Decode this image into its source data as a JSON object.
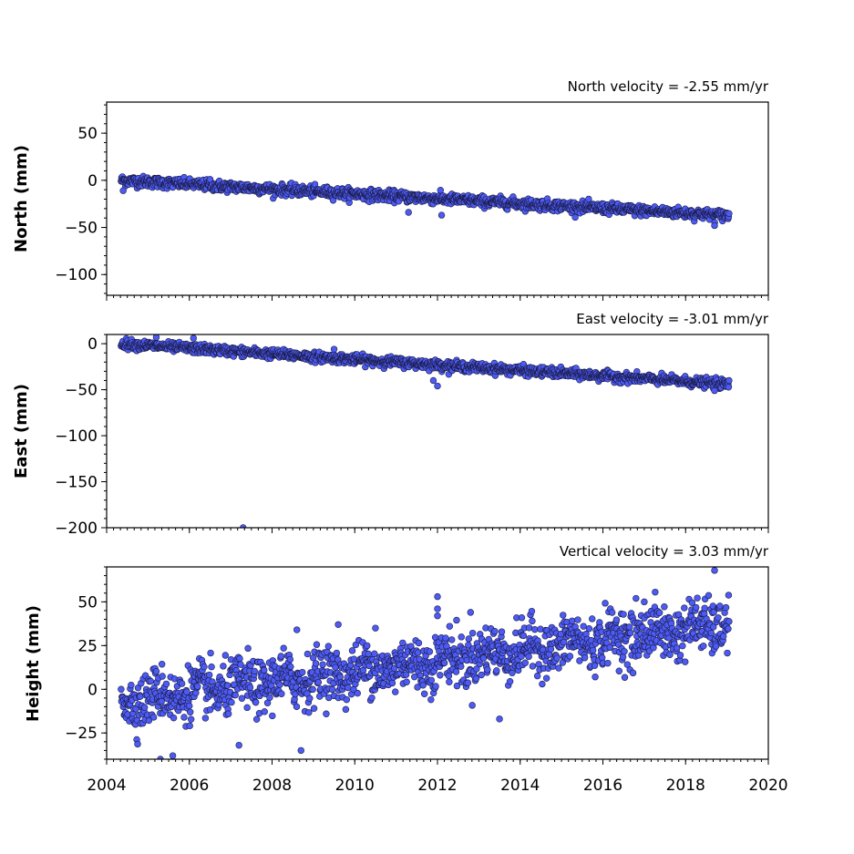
{
  "chart_data": [
    {
      "type": "scatter",
      "id": "north",
      "title": "North velocity = -2.55 mm/yr",
      "xlabel": "",
      "ylabel": "North (mm)",
      "xlim": [
        2004,
        2020
      ],
      "ylim": [
        -122,
        83
      ],
      "yticks": [
        50,
        0,
        -50,
        -100
      ],
      "ytick_labels": [
        "50",
        "0",
        "−50",
        "−100"
      ],
      "x_tick_labels_shown": false,
      "trend": {
        "start_year": 2004.35,
        "end_year": 2019.05,
        "start_value": 0,
        "slope": -2.55
      },
      "scatter_sd": 2.8,
      "outliers": [
        [
          2004.4,
          -11
        ],
        [
          2011.3,
          -34
        ],
        [
          2018.7,
          -48
        ],
        [
          2012.1,
          -37
        ],
        [
          2006.5,
          1
        ]
      ]
    },
    {
      "type": "scatter",
      "id": "east",
      "title": "East velocity = -3.01 mm/yr",
      "xlabel": "",
      "ylabel": "East (mm)",
      "xlim": [
        2004,
        2020
      ],
      "ylim": [
        -200,
        10
      ],
      "yticks": [
        0,
        -50,
        -100,
        -150,
        -200
      ],
      "ytick_labels": [
        "0",
        "−50",
        "−100",
        "−150",
        "−200"
      ],
      "x_tick_labels_shown": false,
      "trend": {
        "start_year": 2004.35,
        "end_year": 2019.05,
        "start_value": 0,
        "slope": -3.01
      },
      "scatter_sd": 2.5,
      "outliers": [
        [
          2005.2,
          7
        ],
        [
          2006.1,
          6
        ],
        [
          2011.9,
          -40
        ],
        [
          2012.0,
          -46
        ],
        [
          2009.5,
          -6
        ],
        [
          2018.7,
          -51
        ],
        [
          2007.3,
          -200
        ]
      ]
    },
    {
      "type": "scatter",
      "id": "height",
      "title": "Vertical velocity = 3.03 mm/yr",
      "xlabel": "",
      "ylabel": "Height (mm)",
      "xlim": [
        2004,
        2020
      ],
      "ylim": [
        -40,
        70
      ],
      "yticks": [
        50,
        25,
        0,
        -25
      ],
      "ytick_labels": [
        "50",
        "25",
        "0",
        "−25"
      ],
      "x_tick_labels_shown": true,
      "trend": {
        "start_year": 2004.35,
        "end_year": 2019.05,
        "start_value": -7,
        "slope": 3.03
      },
      "scatter_sd": 7.5,
      "outliers": [
        [
          2012.0,
          53
        ],
        [
          2012.0,
          46
        ],
        [
          2012.0,
          42
        ],
        [
          2012.8,
          44
        ],
        [
          2008.6,
          34
        ],
        [
          2009.6,
          37
        ],
        [
          2018.7,
          68
        ],
        [
          2016.8,
          52
        ],
        [
          2008.7,
          -35
        ],
        [
          2005.6,
          -38
        ],
        [
          2005.3,
          -40
        ],
        [
          2007.2,
          -32
        ],
        [
          2010.5,
          35
        ],
        [
          2013.5,
          -17
        ],
        [
          2017.0,
          50
        ]
      ]
    }
  ],
  "x_axis": {
    "ticks": [
      2004,
      2006,
      2008,
      2010,
      2012,
      2014,
      2016,
      2018,
      2020
    ],
    "tick_labels": [
      "2004",
      "2006",
      "2008",
      "2010",
      "2012",
      "2014",
      "2016",
      "2018",
      "2020"
    ]
  },
  "colors": {
    "marker_fill": "#4d5bf5",
    "marker_edge": "#1a1a40"
  }
}
